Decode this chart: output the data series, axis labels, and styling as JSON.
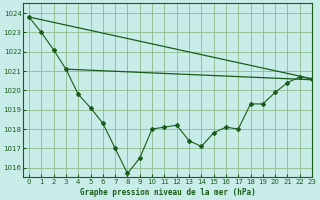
{
  "title": "Graphe pression niveau de la mer (hPa)",
  "bg_color": "#c8ece8",
  "grid_color": "#8dbb8d",
  "line_color": "#1a5c1a",
  "xlim": [
    -0.5,
    23
  ],
  "ylim": [
    1015.5,
    1024.5
  ],
  "yticks": [
    1016,
    1017,
    1018,
    1019,
    1020,
    1021,
    1022,
    1023,
    1024
  ],
  "xticks": [
    0,
    1,
    2,
    3,
    4,
    5,
    6,
    7,
    8,
    9,
    10,
    11,
    12,
    13,
    14,
    15,
    16,
    17,
    18,
    19,
    20,
    21,
    22,
    23
  ],
  "series_main": {
    "x": [
      0,
      1,
      2,
      3,
      4,
      5,
      6,
      7,
      8,
      9,
      10,
      11,
      12,
      13,
      14,
      15,
      16,
      17,
      18,
      19,
      20,
      21,
      22,
      23
    ],
    "y": [
      1023.8,
      1023.0,
      1022.1,
      1021.1,
      1019.8,
      1019.1,
      1018.3,
      1017.0,
      1015.7,
      1016.5,
      1018.0,
      1018.1,
      1018.2,
      1017.4,
      1017.1,
      1017.8,
      1018.1,
      1018.0,
      1019.3,
      1019.3,
      1019.9,
      1020.4,
      1020.7,
      1020.6
    ]
  },
  "series_upper": {
    "x": [
      0,
      23
    ],
    "y": [
      1023.8,
      1020.6
    ]
  },
  "series_lower": {
    "x": [
      3,
      23
    ],
    "y": [
      1021.1,
      1020.55
    ]
  }
}
